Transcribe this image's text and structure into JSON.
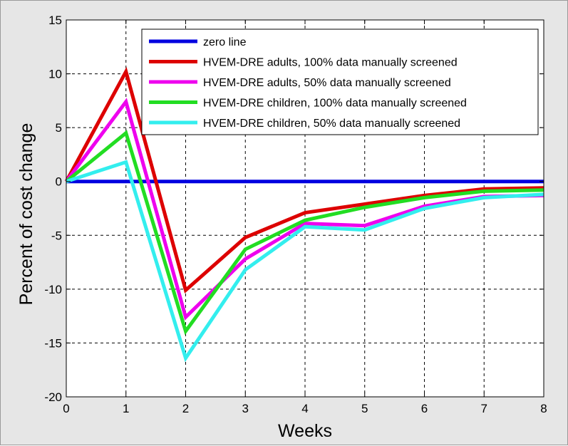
{
  "chart_data": {
    "type": "line",
    "title": "",
    "xlabel": "Weeks",
    "ylabel": "Percent of cost change",
    "xlim": [
      0,
      8
    ],
    "ylim": [
      -20,
      15
    ],
    "xticks": [
      0,
      1,
      2,
      3,
      4,
      5,
      6,
      7,
      8
    ],
    "yticks": [
      15,
      10,
      5,
      0,
      -5,
      -10,
      -15,
      -20
    ],
    "grid": true,
    "legend_position": "top-right",
    "x": [
      0,
      1,
      2,
      3,
      4,
      5,
      6,
      7,
      8
    ],
    "series": [
      {
        "name": "zero line",
        "color": "#0000e0",
        "values": [
          0,
          0,
          0,
          0,
          0,
          0,
          0,
          0,
          0
        ]
      },
      {
        "name": "HVEM-DRE adults, 100% data manually screened",
        "color": "#dd0000",
        "values": [
          0,
          10.2,
          -10.1,
          -5.2,
          -2.9,
          -2.1,
          -1.3,
          -0.7,
          -0.6
        ]
      },
      {
        "name": "HVEM-DRE adults, 50% data manually screened",
        "color": "#ee00ee",
        "values": [
          0,
          7.4,
          -12.6,
          -7.2,
          -3.9,
          -4.1,
          -2.3,
          -1.4,
          -1.3
        ]
      },
      {
        "name": "HVEM-DRE children, 100% data manually screened",
        "color": "#22dd22",
        "values": [
          0,
          4.5,
          -13.9,
          -6.3,
          -3.6,
          -2.4,
          -1.5,
          -0.9,
          -0.8
        ]
      },
      {
        "name": "HVEM-DRE children, 50% data manually screened",
        "color": "#33eeee",
        "values": [
          0,
          1.8,
          -16.4,
          -8.2,
          -4.2,
          -4.5,
          -2.5,
          -1.5,
          -1.2
        ]
      }
    ]
  }
}
